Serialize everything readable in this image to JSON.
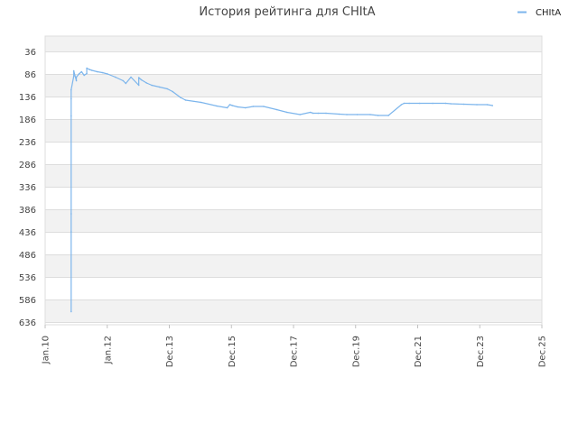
{
  "chart_data": {
    "type": "line",
    "title": "История рейтинга для CHItA",
    "xlabel": "",
    "ylabel": "",
    "legend": {
      "position": "top-right",
      "entries": [
        "CHItA"
      ]
    },
    "grid": true,
    "y_inverted": true,
    "ylim": [
      36,
      636
    ],
    "xlim": [
      "2010-01",
      "2025-12"
    ],
    "y_ticks": [
      "36",
      "86",
      "136",
      "186",
      "236",
      "286",
      "336",
      "386",
      "436",
      "486",
      "536",
      "586",
      "636"
    ],
    "x_ticks": [
      "Jan.10",
      "Jan.12",
      "Dec.13",
      "Dec.15",
      "Dec.17",
      "Dec.19",
      "Dec.21",
      "Dec.23",
      "Dec.25"
    ],
    "colors": {
      "series": "#7cb5ec",
      "band": "#f2f2f2",
      "grid": "#dddddd"
    },
    "series": [
      {
        "name": "CHItA",
        "x": [
          "2010-11",
          "2010-11",
          "2010-11",
          "2010-11",
          "2010-11",
          "2010-11",
          "2010-12",
          "2010-12",
          "2011-01",
          "2011-01",
          "2011-02",
          "2011-03",
          "2011-04",
          "2011-05",
          "2011-05",
          "2011-06",
          "2011-07",
          "2011-09",
          "2011-11",
          "2012-01",
          "2012-04",
          "2012-07",
          "2012-08",
          "2012-10",
          "2013-01",
          "2013-01",
          "2013-02",
          "2013-04",
          "2013-06",
          "2013-09",
          "2013-12",
          "2014-02",
          "2014-05",
          "2014-07",
          "2015-01",
          "2015-07",
          "2015-11",
          "2015-12",
          "2016-01",
          "2016-03",
          "2016-06",
          "2016-09",
          "2017-01",
          "2017-06",
          "2017-10",
          "2018-03",
          "2018-07",
          "2018-08",
          "2018-10",
          "2019-01",
          "2019-06",
          "2019-09",
          "2020-01",
          "2020-06",
          "2020-09",
          "2021-01",
          "2021-06",
          "2021-07",
          "2021-09",
          "2022-01",
          "2022-06",
          "2022-11",
          "2023-01",
          "2023-06",
          "2023-11",
          "2024-03",
          "2024-05"
        ],
        "values": [
          612,
          435,
          395,
          178,
          140,
          120,
          90,
          78,
          100,
          92,
          85,
          80,
          88,
          84,
          72,
          75,
          77,
          80,
          82,
          85,
          92,
          100,
          106,
          92,
          110,
          93,
          98,
          105,
          110,
          114,
          118,
          124,
          137,
          143,
          148,
          156,
          160,
          153,
          155,
          158,
          160,
          157,
          157,
          164,
          170,
          175,
          170,
          172,
          172,
          172,
          174,
          175,
          175,
          175,
          177,
          177,
          153,
          150,
          150,
          150,
          150,
          150,
          151,
          152,
          153,
          153,
          155
        ]
      }
    ]
  }
}
